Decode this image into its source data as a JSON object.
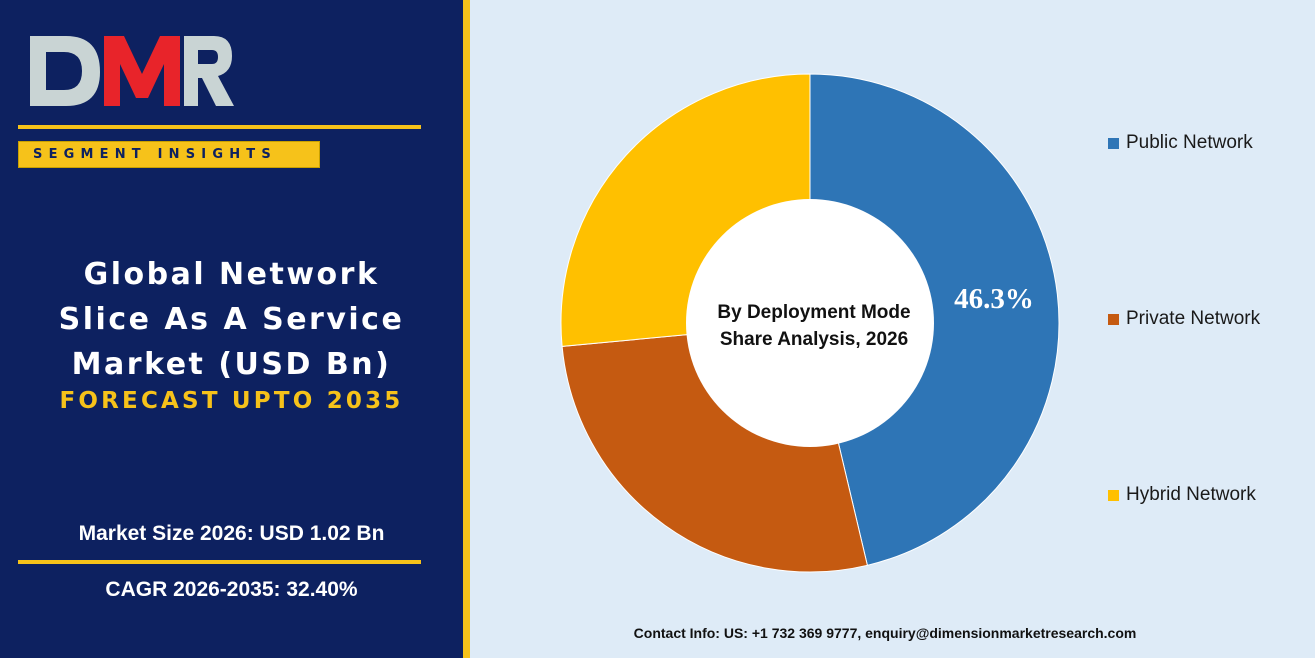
{
  "brand": {
    "logo_text": "DMR",
    "tag": "SEGMENT INSIGHTS"
  },
  "report": {
    "title_lines": [
      "Global Network",
      "Slice As A Service",
      "Market (USD Bn)"
    ],
    "subtitle": "FORECAST UPTO 2035",
    "market_size": "Market Size 2026: USD 1.02 Bn",
    "cagr": "CAGR 2026-2035: 32.40%"
  },
  "chart_data": {
    "type": "pie",
    "donut": true,
    "center_label_lines": [
      "By Deployment Mode",
      "Share Analysis, 2026"
    ],
    "categories": [
      "Public Network",
      "Private Network",
      "Hybrid Network"
    ],
    "values": [
      46.3,
      27.2,
      26.5
    ],
    "colors": [
      "#2e75b6",
      "#c55a11",
      "#ffc000"
    ],
    "data_labels": [
      {
        "category": "Public Network",
        "text": "46.3%"
      }
    ],
    "legend_position": "right"
  },
  "contact": "Contact Info: US: +1 732 369 9777, enquiry@dimensionmarketresearch.com"
}
